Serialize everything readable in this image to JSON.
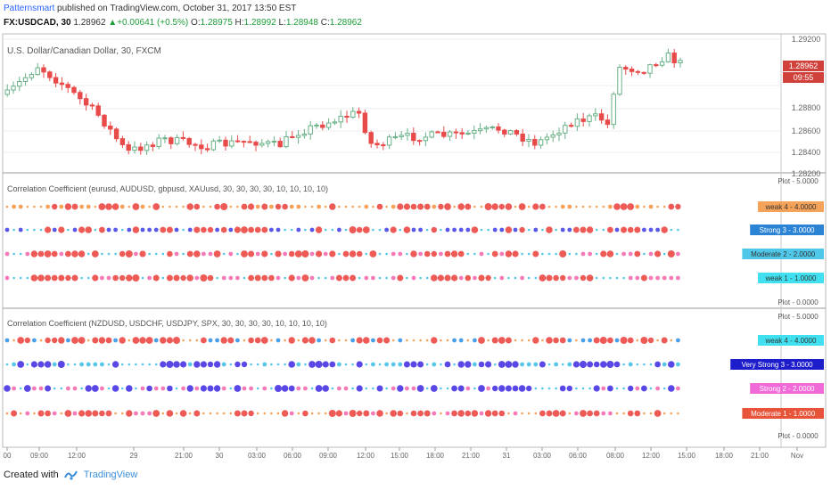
{
  "header": {
    "author": "Patternsmart",
    "published": "published on TradingView.com, October 31, 2017 13:50 EST",
    "symbol": "FX:USDCAD, 30",
    "last": "1.28962",
    "change": "+0.00641 (+0.5%)",
    "o_label": "O:",
    "o_val": "1.28975",
    "h_label": "H:",
    "h_val": "1.28992",
    "l_label": "L:",
    "l_val": "1.28948",
    "c_label": "C:",
    "c_val": "1.28962"
  },
  "price_pane": {
    "title": "U.S. Dollar/Canadian Dollar, 30, FXCM",
    "axis_labels": [
      "1.29200",
      "1.28800",
      "1.28600",
      "1.28400",
      "1.28200"
    ],
    "price_badge": "1.28962",
    "countdown_badge": "09:55",
    "colors": {
      "up": "#6ab187",
      "down": "#e84a4a",
      "badge": "#d0413b"
    }
  },
  "pane1": {
    "title": "Correlation Coefficient (eurusd, AUDUSD, gbpusd, XAUusd, 30, 30, 30, 30, 10, 10, 10, 10)",
    "plot_top": "Plot - 5.0000",
    "plot_bottom": "Plot - 0.0000",
    "tags": [
      {
        "label": "weak 4 - 4.0000",
        "color": "#f5a35b",
        "text_color": "#333333"
      },
      {
        "label": "Strong 3 - 3.0000",
        "color": "#2b83d6",
        "text_color": "#ffffff"
      },
      {
        "label": "Moderate 2 - 2.0000",
        "color": "#4fc7e8",
        "text_color": "#333333"
      },
      {
        "label": "weak 1 - 1.0000",
        "color": "#41e0f0",
        "text_color": "#333333"
      }
    ]
  },
  "pane2": {
    "title": "Correlation Coefficient (NZDUSD, USDCHF, USDJPY, SPX, 30, 30, 30, 30, 10, 10, 10, 10)",
    "plot_top": "Plot - 5.0000",
    "plot_bottom": "Plot - 0.0000",
    "tags": [
      {
        "label": "weak 4 - 4.0000",
        "color": "#41e0f0",
        "text_color": "#333333"
      },
      {
        "label": "Very Strong 3 - 3.0000",
        "color": "#1d1dcc",
        "text_color": "#ffffff"
      },
      {
        "label": "Strong 2 - 2.0000",
        "color": "#f06ad8",
        "text_color": "#ffffff"
      },
      {
        "label": "Moderate 1 - 1.0000",
        "color": "#e8543a",
        "text_color": "#ffffff"
      }
    ]
  },
  "time_axis": [
    "00",
    "09:00",
    "12:00",
    "29",
    "21:00",
    "30",
    "03:00",
    "06:00",
    "09:00",
    "12:00",
    "15:00",
    "18:00",
    "21:00",
    "31",
    "03:00",
    "06:00",
    "08:00",
    "12:00",
    "15:00",
    "18:00",
    "21:00",
    "Nov"
  ],
  "footer": {
    "created": "Created with",
    "brand": "TradingView"
  }
}
